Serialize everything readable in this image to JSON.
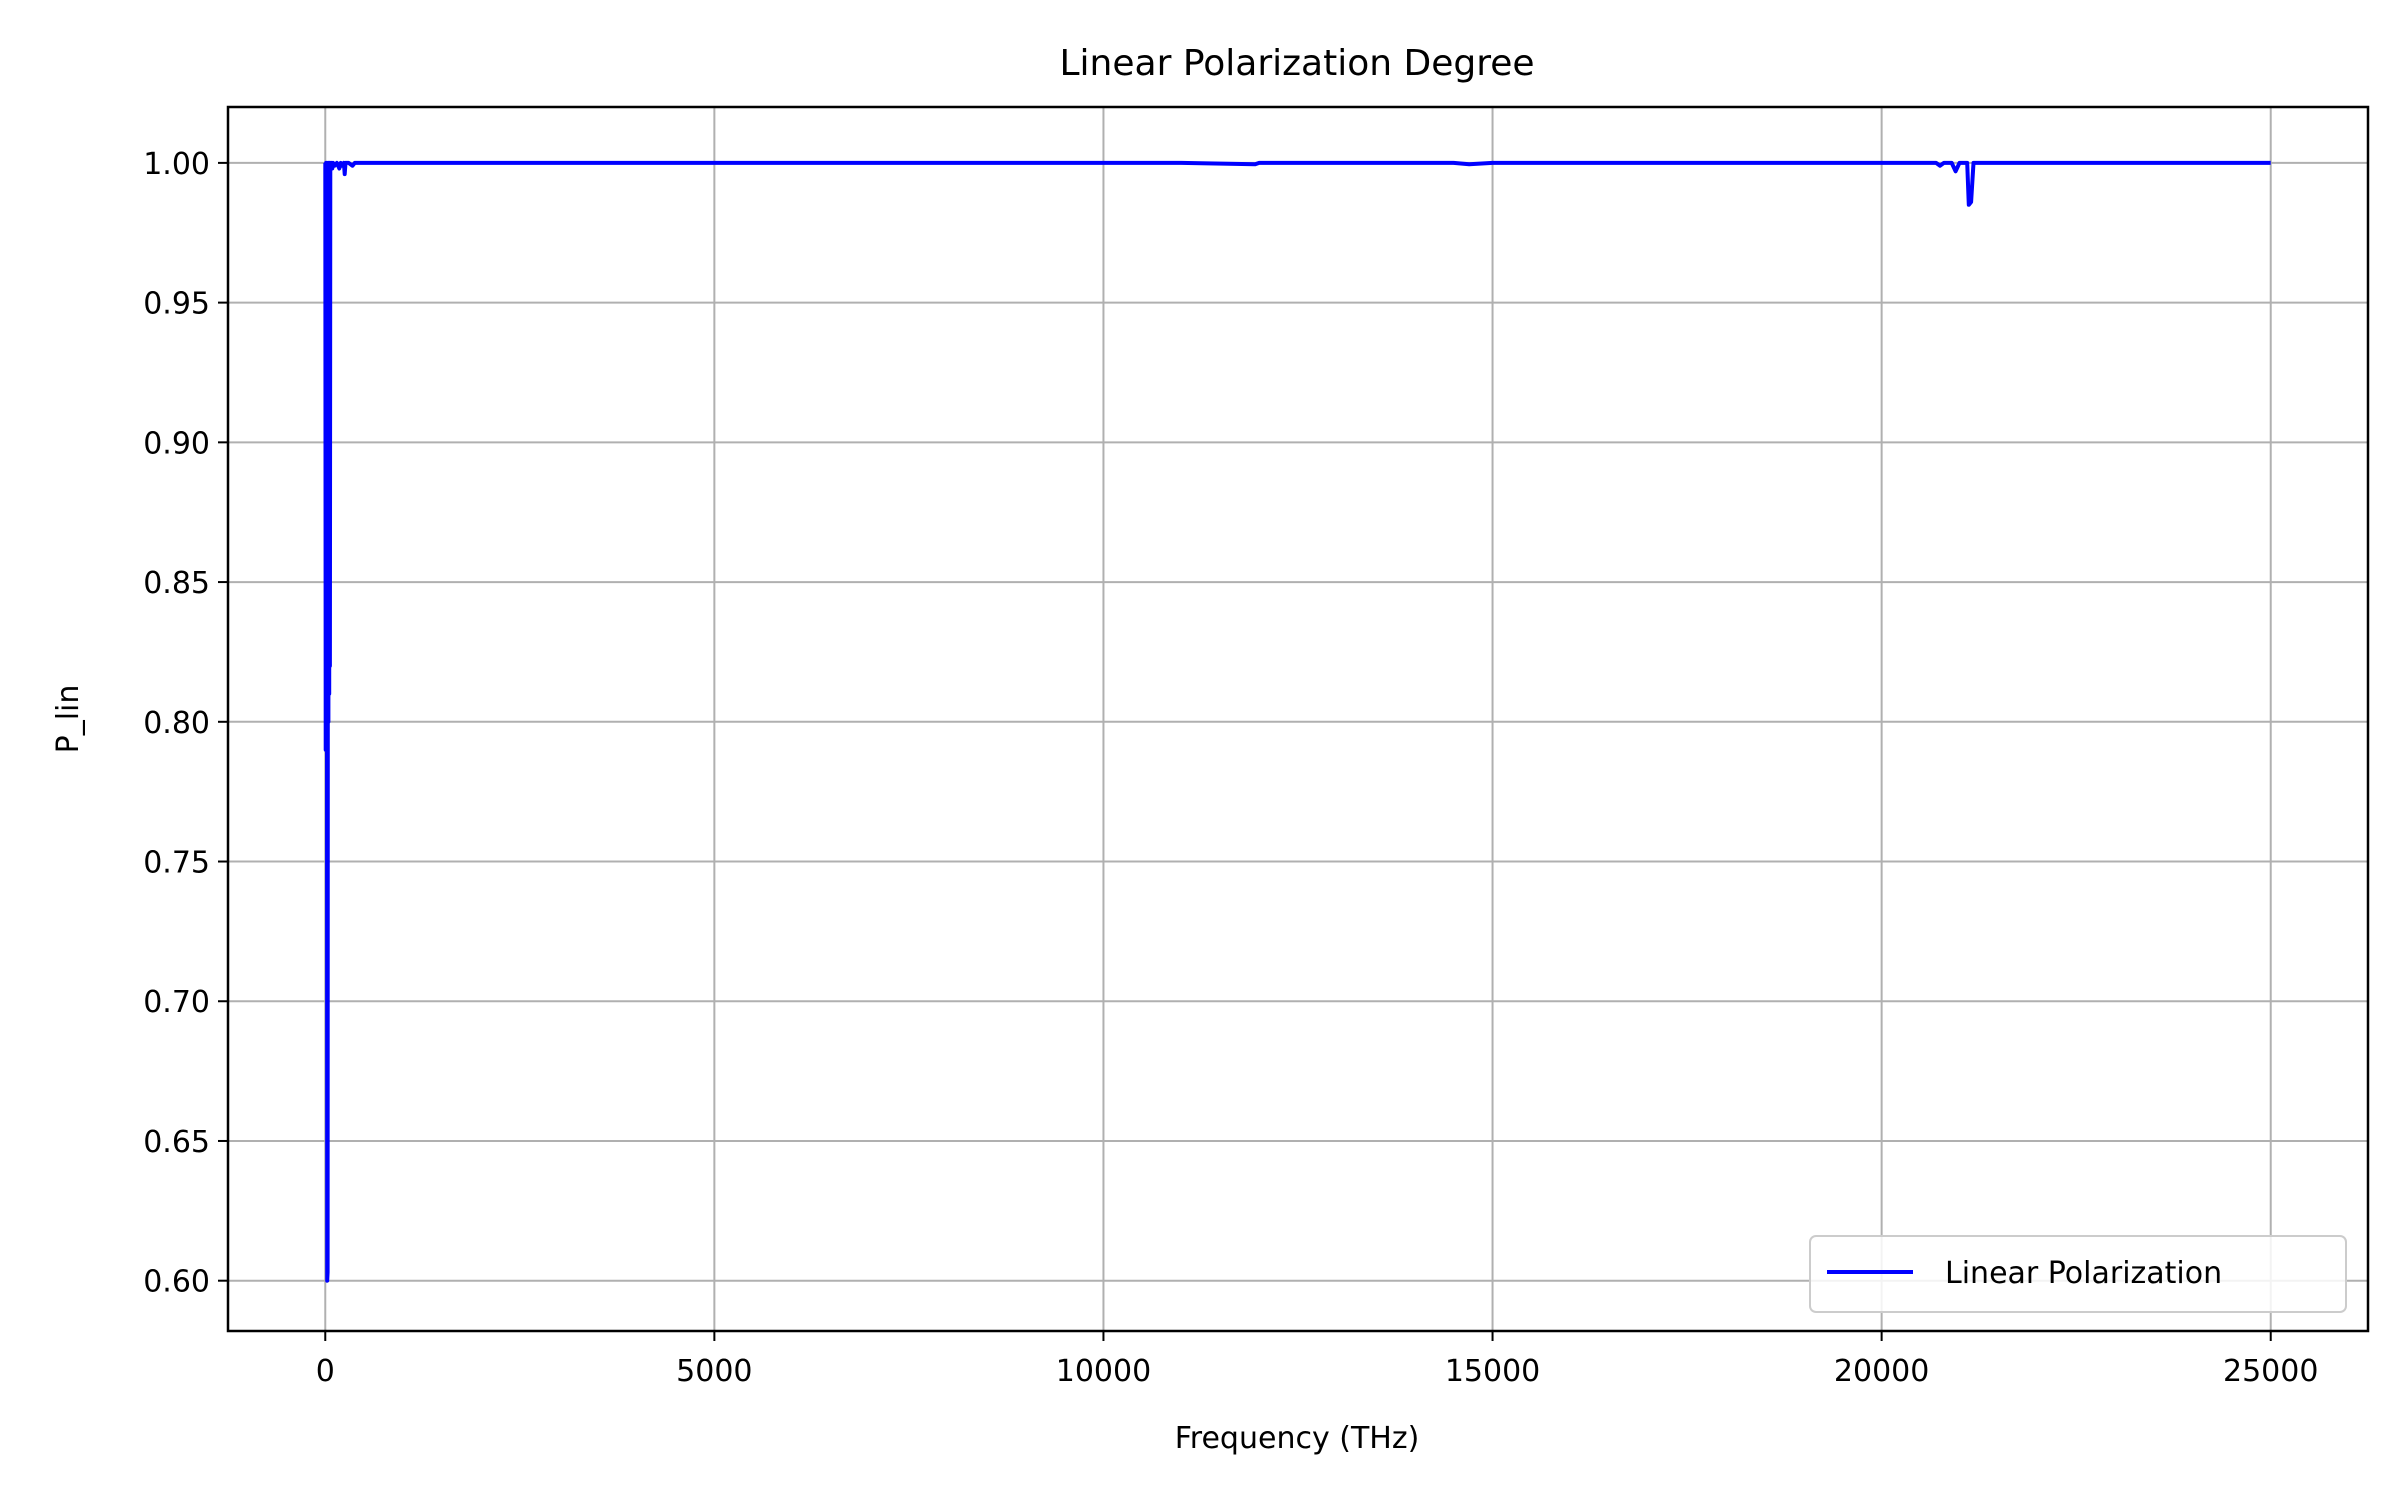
{
  "chart_data": {
    "type": "line",
    "title": "Linear Polarization Degree",
    "xlabel": "Frequency (THz)",
    "ylabel": "P_lin",
    "xlim": [
      -1250,
      26250
    ],
    "ylim": [
      0.582,
      1.02
    ],
    "x_ticks": [
      0,
      5000,
      10000,
      15000,
      20000,
      25000
    ],
    "x_tick_labels": [
      "0",
      "5000",
      "10000",
      "15000",
      "20000",
      "25000"
    ],
    "y_ticks": [
      0.6,
      0.65,
      0.7,
      0.75,
      0.8,
      0.85,
      0.9,
      0.95,
      1.0
    ],
    "y_tick_labels": [
      "0.60",
      "0.65",
      "0.70",
      "0.75",
      "0.80",
      "0.85",
      "0.90",
      "0.95",
      "1.00"
    ],
    "grid": true,
    "legend": {
      "position": "lower-right",
      "entries": [
        "Linear Polarization"
      ]
    },
    "series": [
      {
        "name": "Linear Polarization",
        "color": "#0000ff",
        "x": [
          0,
          5,
          10,
          15,
          20,
          25,
          30,
          35,
          40,
          45,
          50,
          55,
          60,
          65,
          70,
          80,
          90,
          100,
          120,
          150,
          180,
          200,
          220,
          240,
          250,
          260,
          300,
          350,
          380,
          400,
          500,
          2000,
          5000,
          8000,
          11000,
          11950,
          12000,
          12050,
          14000,
          14500,
          14700,
          15000,
          18000,
          20000,
          20700,
          20750,
          20800,
          20900,
          20950,
          21000,
          21050,
          21100,
          21120,
          21150,
          21180,
          21250,
          22000,
          23000,
          24000,
          24500,
          25000
        ],
        "y": [
          1.0,
          0.79,
          1.0,
          0.85,
          1.0,
          0.6,
          0.603,
          1.0,
          0.8,
          1.0,
          0.81,
          1.0,
          0.82,
          1.0,
          0.998,
          1.0,
          0.998,
          1.0,
          0.999,
          1.0,
          0.998,
          1.0,
          0.999,
          1.0,
          0.996,
          1.0,
          1.0,
          0.999,
          1.0,
          1.0,
          1.0,
          1.0,
          1.0,
          1.0,
          1.0,
          0.9995,
          1.0,
          1.0,
          1.0,
          1.0,
          0.9995,
          1.0,
          1.0,
          1.0,
          1.0,
          0.999,
          1.0,
          1.0,
          0.997,
          1.0,
          1.0,
          1.0,
          0.985,
          0.986,
          1.0,
          1.0,
          1.0,
          1.0,
          1.0,
          1.0,
          1.0
        ]
      }
    ]
  }
}
